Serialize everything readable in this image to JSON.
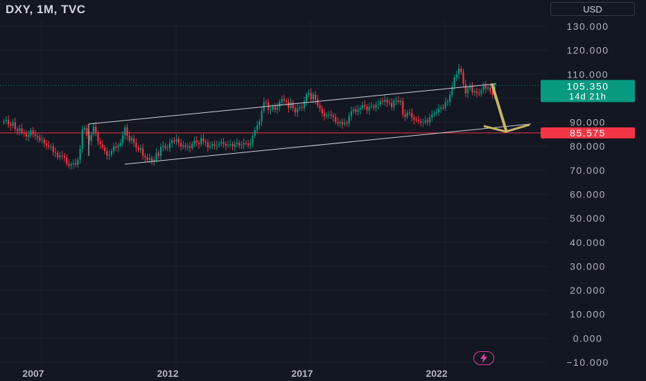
{
  "header": {
    "title": "DXY, 1M, TVC",
    "currency": "USD"
  },
  "price_scale": {
    "ticks": [
      "130.000",
      "120.000",
      "110.000",
      "100.000",
      "90.000",
      "80.000",
      "70.000",
      "60.000",
      "50.000",
      "40.000",
      "30.000",
      "20.000",
      "10.000",
      "0.000",
      "−10.000"
    ]
  },
  "time_scale": {
    "ticks": [
      "2007",
      "2012",
      "2017",
      "2022"
    ]
  },
  "current_price": {
    "value": "105.350",
    "countdown": "14d 21h",
    "color": "#089981"
  },
  "horizontal_level": {
    "value": "85.575",
    "color": "#f23645"
  },
  "colors": {
    "background": "#131722",
    "up": "#089981",
    "down": "#f23645",
    "grid": "#1e222d",
    "channel": "#d1d4dc",
    "arrow": "#c8b465",
    "brand": "#e040a0"
  },
  "chart_data": {
    "type": "candlestick",
    "title": "DXY, 1M, TVC",
    "interval": "monthly",
    "ylim": [
      -10,
      130
    ],
    "y_ticks": [
      130,
      120,
      110,
      100,
      90,
      80,
      70,
      60,
      50,
      40,
      30,
      20,
      10,
      0,
      -10
    ],
    "x_ticks": [
      "2007",
      "2012",
      "2017",
      "2022"
    ],
    "grid": true,
    "x_start_year": 2005.6,
    "closes": [
      90.5,
      91.0,
      89.2,
      88.5,
      90.0,
      87.2,
      86.3,
      87.5,
      85.8,
      85.2,
      84.0,
      84.6,
      86.6,
      85.0,
      84.3,
      83.6,
      82.5,
      82.8,
      81.2,
      80.4,
      79.7,
      79.9,
      77.6,
      77.3,
      75.4,
      76.2,
      76.0,
      75.3,
      72.7,
      71.9,
      72.5,
      73.0,
      72.3,
      74.4,
      79.0,
      86.9,
      87.6,
      84.5,
      82.3,
      85.0,
      88.2,
      85.5,
      82.0,
      80.8,
      79.5,
      78.0,
      76.1,
      76.5,
      78.0,
      80.0,
      79.5,
      80.3,
      81.4,
      84.5,
      87.9,
      84.4,
      82.3,
      83.4,
      81.4,
      79.5,
      78.5,
      79.2,
      76.0,
      75.4,
      74.4,
      75.1,
      73.8,
      74.4,
      77.3,
      76.0,
      79.7,
      80.2,
      79.2,
      79.3,
      81.3,
      82.4,
      81.9,
      83.1,
      81.4,
      79.9,
      80.4,
      79.7,
      79.9,
      79.3,
      81.0,
      82.4,
      81.5,
      80.9,
      83.4,
      82.0,
      81.5,
      79.6,
      80.2,
      81.0,
      80.2,
      80.5,
      81.1,
      81.7,
      81.0,
      80.3,
      80.7,
      80.9,
      79.9,
      80.8,
      81.5,
      80.4,
      80.7,
      81.4,
      81.2,
      80.5,
      81.4,
      84.4,
      86.7,
      88.7,
      90.3,
      94.8,
      98.4,
      98.3,
      95.2,
      95.3,
      96.5,
      95.2,
      96.4,
      98.5,
      99.7,
      99.0,
      98.6,
      96.0,
      98.3,
      95.8,
      94.1,
      95.8,
      96.2,
      96.0,
      98.7,
      101.5,
      102.2,
      99.5,
      101.6,
      99.5,
      97.1,
      95.6,
      93.8,
      92.6,
      93.0,
      93.2,
      92.9,
      92.2,
      90.1,
      89.6,
      90.1,
      89.2,
      89.8,
      89.6,
      92.6,
      94.6,
      95.4,
      94.4,
      95.3,
      96.0,
      97.1,
      96.6,
      95.0,
      96.5,
      96.7,
      96.1,
      97.3,
      97.5,
      98.9,
      98.5,
      99.4,
      98.2,
      98.0,
      96.4,
      99.0,
      99.1,
      98.4,
      98.9,
      93.4,
      92.3,
      94.0,
      93.9,
      92.1,
      91.0,
      90.9,
      90.5,
      89.9,
      90.0,
      90.8,
      90.0,
      92.1,
      93.2,
      93.9,
      94.3,
      95.6,
      96.1,
      96.0,
      98.4,
      98.7,
      101.5,
      104.9,
      108.7,
      110.0,
      112.4,
      110.8,
      105.9,
      102.1,
      104.1,
      104.8,
      102.5,
      102.9,
      102.2,
      101.9,
      103.4,
      105.3,
      104.0,
      104.5,
      103.0,
      101.5,
      105.35
    ]
  }
}
